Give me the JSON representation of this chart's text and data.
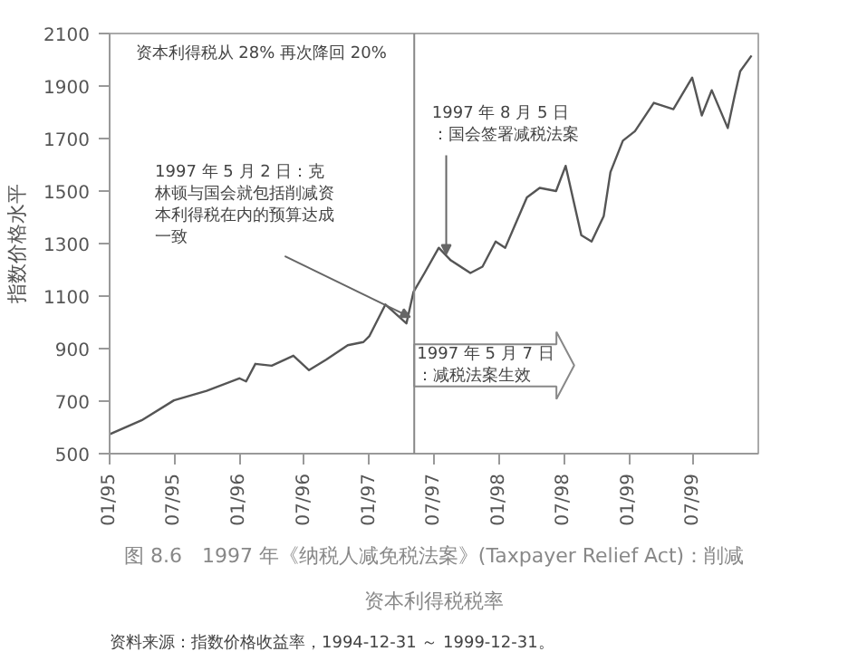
{
  "chart_data": {
    "type": "line",
    "title": "图 8.6　1997 年《纳税人减免税法案》(Taxpayer Relief Act)：削减资本利得税税率",
    "ylabel": "指数价格水平",
    "x": [
      "1995-01-01",
      "1995-04-01",
      "1995-07-01",
      "1995-10-01",
      "1996-01-01",
      "1996-01-20",
      "1996-02-15",
      "1996-04-01",
      "1996-06-01",
      "1996-07-15",
      "1996-09-01",
      "1996-11-01",
      "1996-12-15",
      "1997-01-01",
      "1997-02-15",
      "1997-04-15",
      "1997-05-05",
      "1997-06-05",
      "1997-07-15",
      "1997-08-18",
      "1997-10-12",
      "1997-11-15",
      "1997-12-22",
      "1998-01-18",
      "1998-03-20",
      "1998-04-25",
      "1998-06-10",
      "1998-07-07",
      "1998-08-20",
      "1998-09-18",
      "1998-10-22",
      "1998-11-10",
      "1998-12-15",
      "1999-01-18",
      "1999-03-12",
      "1999-05-06",
      "1999-06-28",
      "1999-07-25",
      "1999-08-22",
      "1999-10-06",
      "1999-10-25",
      "1999-11-10",
      "1999-12-12"
    ],
    "series": [
      {
        "color": "#555555",
        "values": [
          574,
          627,
          703,
          739,
          787,
          775,
          842,
          835,
          873,
          818,
          858,
          913,
          925,
          948,
          1068,
          996,
          1116,
          1188,
          1284,
          1236,
          1188,
          1212,
          1308,
          1284,
          1476,
          1512,
          1500,
          1596,
          1332,
          1308,
          1404,
          1572,
          1692,
          1728,
          1836,
          1812,
          1932,
          1788,
          1884,
          1740,
          1860,
          1956,
          2016
        ]
      }
    ],
    "xlim": [
      "1995-01-01",
      "1999-12-31"
    ],
    "xticks": [
      {
        "value": "1995-01-01",
        "label": "01/95"
      },
      {
        "value": "1995-07-01",
        "label": "07/95"
      },
      {
        "value": "1996-01-01",
        "label": "01/96"
      },
      {
        "value": "1996-07-01",
        "label": "07/96"
      },
      {
        "value": "1997-01-01",
        "label": "01/97"
      },
      {
        "value": "1997-07-01",
        "label": "07/97"
      },
      {
        "value": "1998-01-01",
        "label": "01/98"
      },
      {
        "value": "1998-07-01",
        "label": "07/98"
      },
      {
        "value": "1999-01-01",
        "label": "01/99"
      },
      {
        "value": "1999-07-01",
        "label": "07/99"
      }
    ],
    "ylim": [
      500,
      2100
    ],
    "yticks": [
      500,
      700,
      900,
      1100,
      1300,
      1500,
      1700,
      1900,
      2100
    ],
    "grid": false,
    "ref_lines": [
      {
        "axis": "x",
        "value": "1997-05-07",
        "label": "1997 年 5 月 7 日：减税法案生效",
        "color": "#888888"
      }
    ],
    "annotations": [
      "资本利得税从 28% 再次降回 20%",
      {
        "text": "1997 年 5 月 2 日：克林顿与国会就包括削减资本利得税在内的预算达成一致",
        "x": "1997-04-25",
        "y": 1000
      },
      {
        "text": "1997 年 8 月 5 日：国会签署减税法案",
        "x": "1997-08-05",
        "y": 1240
      },
      "资料来源：指数价格收益率，1994-12-31 ～ 1999-12-31。"
    ]
  }
}
